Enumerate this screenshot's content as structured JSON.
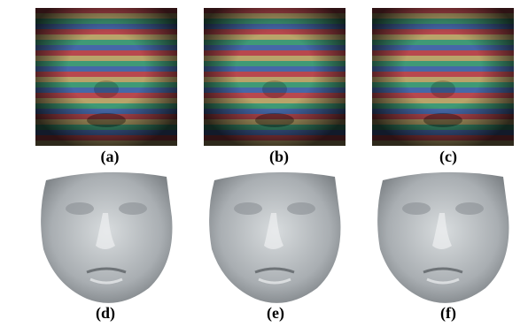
{
  "figure": {
    "labels": [
      "(a)",
      "(b)",
      "(c)",
      "(d)",
      "(e)",
      "(f)"
    ]
  }
}
